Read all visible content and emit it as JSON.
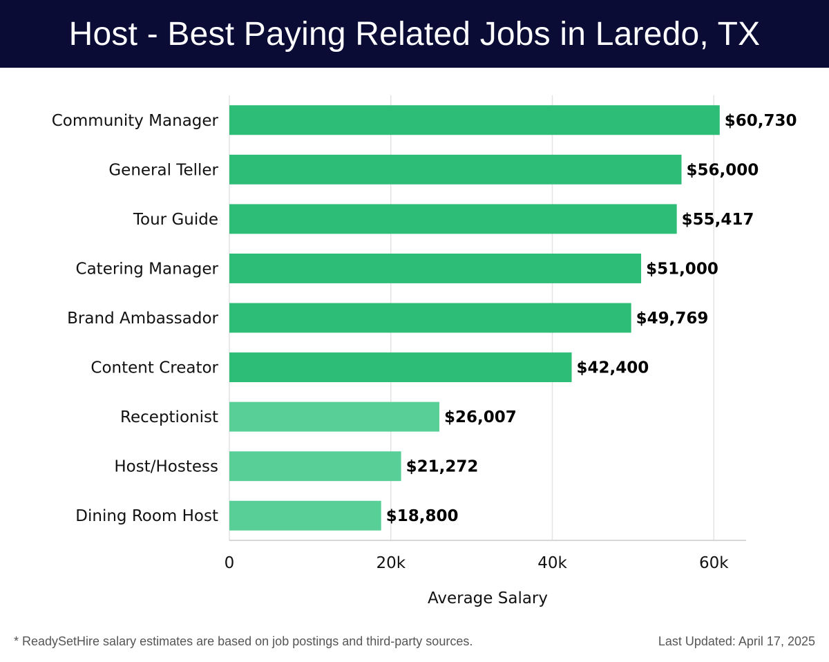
{
  "header": {
    "title": "Host - Best Paying Related Jobs in Laredo, TX"
  },
  "chart_data": {
    "type": "bar",
    "orientation": "horizontal",
    "categories": [
      "Community Manager",
      "General Teller",
      "Tour Guide",
      "Catering Manager",
      "Brand Ambassador",
      "Content Creator",
      "Receptionist",
      "Host/Hostess",
      "Dining Room Host"
    ],
    "values": [
      60730,
      56000,
      55417,
      51000,
      49769,
      42400,
      26007,
      21272,
      18800
    ],
    "data_labels": [
      "$60,730",
      "$56,000",
      "$55,417",
      "$51,000",
      "$49,769",
      "$42,400",
      "$26,007",
      "$21,272",
      "$18,800"
    ],
    "xlabel": "Average Salary",
    "ylabel": "",
    "xlim": [
      0,
      64000
    ],
    "xticks": [
      0,
      20000,
      40000,
      60000
    ],
    "xtick_labels": [
      "0",
      "20k",
      "40k",
      "60k"
    ],
    "grid": true,
    "colors": {
      "bar_high": "#2dbd77",
      "bar_low": "#58cf97",
      "grid": "#e3e3e3",
      "axis": "#cccccc"
    }
  },
  "footer": {
    "note": "* ReadySetHire salary estimates are based on job postings and third-party sources.",
    "updated": "Last Updated: April 17, 2025"
  }
}
